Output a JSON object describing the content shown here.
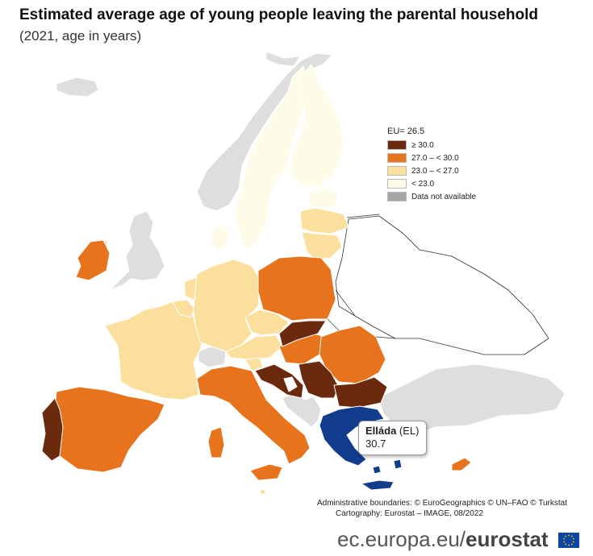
{
  "title": "Estimated average age of young people leaving the parental household",
  "subtitle": "(2021, age in years)",
  "legend": {
    "header": "EU= 26.5",
    "classes": [
      {
        "label": "≥ 30.0",
        "color": "#6b2a0e"
      },
      {
        "label": "27.0 – < 30.0",
        "color": "#e8731d"
      },
      {
        "label": "23.0 – < 27.0",
        "color": "#fbdf9d"
      },
      {
        "label": "< 23.0",
        "color": "#fefce8"
      },
      {
        "label": "Data not available",
        "color": "#a6a6a6"
      }
    ]
  },
  "colors": {
    "not_covered": "#dedede",
    "selected": "#123c8c",
    "background": "#ffffff"
  },
  "highlight": {
    "name": "Elláda",
    "code": "(EL)",
    "value": "30.7"
  },
  "credits": {
    "line1": "Administrative boundaries: © EuroGeographics © UN–FAO © Turkstat",
    "line2": "Cartography: Eurostat – IMAGE, 08/2022"
  },
  "brand": {
    "domain": "ec.europa.eu/",
    "name": "eurostat"
  }
}
